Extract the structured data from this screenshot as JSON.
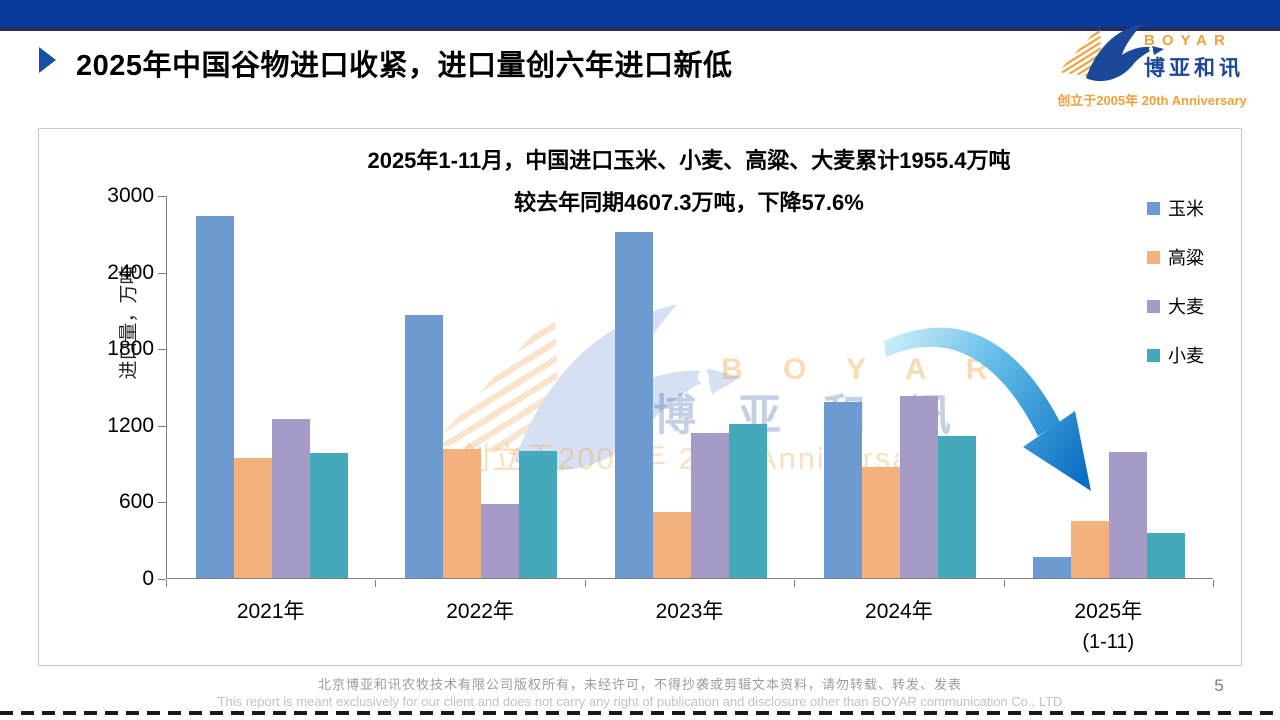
{
  "slide": {
    "title": "2025年中国谷物进口收紧，进口量创六年进口新低",
    "page_number": "5",
    "footer_line1": "北京博亚和讯农牧技术有限公司版权所有，未经许可，不得抄袭或剪辑文本资料，请勿转载、转发、发表",
    "footer_line2": "This report is meant exclusively for our client and does not carry any right of publication and disclosure other than BOYAR communication Co., LTD"
  },
  "logo": {
    "name_en": "BOYAR",
    "name_cn": "博亚和讯",
    "tagline": "创立于2005年 20th Anniversary"
  },
  "watermark": {
    "en": "B O Y A R",
    "cn": "博 亚 和 讯",
    "tagline": "创立于2005年  20th Anniversary"
  },
  "colors": {
    "topbar_blue": "#0c3a9a",
    "topbar_edge": "#1e2f63",
    "logo_blue": "#1c4899",
    "logo_orange": "#f0a13e",
    "arrow_blue_dark": "#0a6fc2",
    "arrow_blue_light": "#d8f3fa",
    "axis_gray": "#7f7f7f"
  },
  "chart_data": {
    "type": "bar",
    "title_line1": "2025年1-11月，中国进口玉米、小麦、高粱、大麦累计1955.4万吨",
    "title_line2": "较去年同期4607.3万吨，下降57.6%",
    "ylabel": "进口量，万吨",
    "xlabel": "",
    "ylim": [
      0,
      3000
    ],
    "yticks": [
      0,
      600,
      1200,
      1800,
      2400,
      3000
    ],
    "grid": false,
    "legend_position": "right",
    "categories": [
      "2021年",
      "2022年",
      "2023年",
      "2024年",
      "2025年"
    ],
    "category_sublabels": [
      "",
      "",
      "",
      "",
      "(1-11)"
    ],
    "series": [
      {
        "name": "玉米",
        "color": "#6d9bd1",
        "values": [
          2835,
          2062,
          2714,
          1376,
          163
        ]
      },
      {
        "name": "高粱",
        "color": "#f2b17d",
        "values": [
          942,
          1014,
          520,
          866,
          449
        ]
      },
      {
        "name": "大麦",
        "color": "#a69bc7",
        "values": [
          1248,
          576,
          1133,
          1425,
          989
        ]
      },
      {
        "name": "小麦",
        "color": "#45a9bc",
        "values": [
          977,
          996,
          1210,
          1110,
          354
        ]
      }
    ],
    "annotation": "decline-arrow pointing from 2024 group down to 2025 group"
  }
}
